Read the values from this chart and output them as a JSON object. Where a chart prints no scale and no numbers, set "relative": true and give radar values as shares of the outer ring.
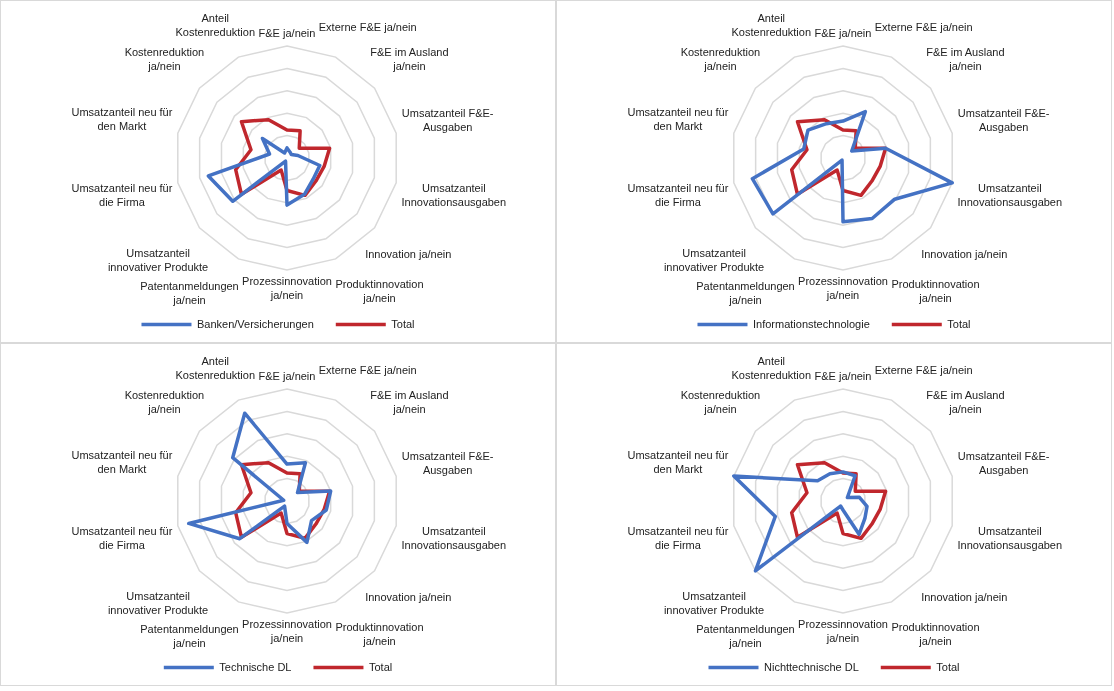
{
  "chart_data": [
    {
      "type": "radar",
      "relative": true,
      "legend": "bottom",
      "categories": [
        "F&E ja/nein",
        "Externe F&E ja/nein",
        "F&E im Ausland\nja/nein",
        "Umsatzanteil F&E-\nAusgaben",
        "Umsatzanteil\nInnovationsausgaben",
        "Innovation ja/nein",
        "Produktinnovation\nja/nein",
        "Prozessinnovation\nja/nein",
        "Patentanmeldungen\nja/nein",
        "Umsatzanteil\ninnovativer Produkte",
        "Umsatzanteil neu für\ndie Firma",
        "Umsatzanteil neu für\nden Markt",
        "Kostenreduktion\nja/nein",
        "Anteil\nKostenreduktion"
      ],
      "series": [
        {
          "name": "Banken/Versicherungen",
          "color": "#4472c4",
          "values": [
            0.09,
            0.06,
            0.05,
            0.1,
            0.3,
            0.3,
            0.36,
            0.42,
            0.03,
            0.62,
            0.72,
            0.16,
            0.28,
            0.05
          ]
        },
        {
          "name": "Total",
          "color": "#c0272d",
          "values": [
            0.25,
            0.27,
            0.14,
            0.39,
            0.34,
            0.33,
            0.37,
            0.29,
            0.12,
            0.52,
            0.47,
            0.33,
            0.52,
            0.38
          ]
        }
      ]
    },
    {
      "type": "radar",
      "relative": true,
      "legend": "bottom",
      "categories": [
        "F&E ja/nein",
        "Externe F&E ja/nein",
        "F&E im Ausland\nja/nein",
        "Umsatzanteil F&E-\nAusgaben",
        "Umsatzanteil\nInnovationsausgaben",
        "Innovation ja/nein",
        "Produktinnovation\nja/nein",
        "Prozessinnovation\nja/nein",
        "Patentanmeldungen\nja/nein",
        "Umsatzanteil\ninnovativer Produkte",
        "Umsatzanteil neu für\ndie Firma",
        "Umsatzanteil neu für\nden Markt",
        "Kostenreduktion\nja/nein",
        "Anteil\nKostenreduktion"
      ],
      "series": [
        {
          "name": "Informationstechnologie",
          "color": "#4472c4",
          "values": [
            0.33,
            0.46,
            0.1,
            0.39,
            1.0,
            0.59,
            0.6,
            0.57,
            0.02,
            0.8,
            0.83,
            0.36,
            0.4,
            0.34
          ]
        },
        {
          "name": "Total",
          "color": "#c0272d",
          "values": [
            0.25,
            0.27,
            0.14,
            0.39,
            0.34,
            0.33,
            0.37,
            0.29,
            0.12,
            0.52,
            0.47,
            0.33,
            0.52,
            0.38
          ]
        }
      ]
    },
    {
      "type": "radar",
      "relative": true,
      "legend": "bottom",
      "categories": [
        "F&E ja/nein",
        "Externe F&E ja/nein",
        "F&E im Ausland\nja/nein",
        "Umsatzanteil F&E-\nAusgaben",
        "Umsatzanteil\nInnovationsausgaben",
        "Innovation ja/nein",
        "Produktinnovation\nja/nein",
        "Prozessinnovation\nja/nein",
        "Patentanmeldungen\nja/nein",
        "Umsatzanteil\ninnovativer Produkte",
        "Umsatzanteil neu für\ndie Firma",
        "Umsatzanteil neu für\nden Markt",
        "Kostenreduktion\nja/nein",
        "Anteil\nKostenreduktion"
      ],
      "series": [
        {
          "name": "Technische DL",
          "color": "#4472c4",
          "values": [
            0.33,
            0.38,
            0.12,
            0.4,
            0.36,
            0.28,
            0.41,
            0.2,
            0.05,
            0.54,
            0.9,
            0.03,
            0.62,
            0.87
          ]
        },
        {
          "name": "Total",
          "color": "#c0272d",
          "values": [
            0.25,
            0.27,
            0.14,
            0.39,
            0.34,
            0.33,
            0.37,
            0.29,
            0.12,
            0.52,
            0.47,
            0.33,
            0.52,
            0.38
          ]
        }
      ]
    },
    {
      "type": "radar",
      "relative": true,
      "legend": "bottom",
      "categories": [
        "F&E ja/nein",
        "Externe F&E ja/nein",
        "F&E im Ausland\nja/nein",
        "Umsatzanteil F&E-\nAusgaben",
        "Umsatzanteil\nInnovationsausgaben",
        "Innovation ja/nein",
        "Produktinnovation\nja/nein",
        "Prozessinnovation\nja/nein",
        "Patentanmeldungen\nja/nein",
        "Umsatzanteil\ninnovativer Produkte",
        "Umsatzanteil neu für\ndie Firma",
        "Umsatzanteil neu für\nden Markt",
        "Kostenreduktion\nja/nein",
        "Anteil\nKostenreduktion"
      ],
      "series": [
        {
          "name": "Nichttechnische DL",
          "color": "#4472c4",
          "values": [
            0.26,
            0.25,
            0.05,
            0.15,
            0.22,
            0.25,
            0.33,
            0.08,
            0.05,
            1.0,
            0.62,
            1.0,
            0.29,
            0.27
          ]
        },
        {
          "name": "Total",
          "color": "#c0272d",
          "values": [
            0.25,
            0.27,
            0.14,
            0.39,
            0.34,
            0.33,
            0.37,
            0.29,
            0.12,
            0.52,
            0.47,
            0.33,
            0.52,
            0.38
          ]
        }
      ]
    }
  ]
}
